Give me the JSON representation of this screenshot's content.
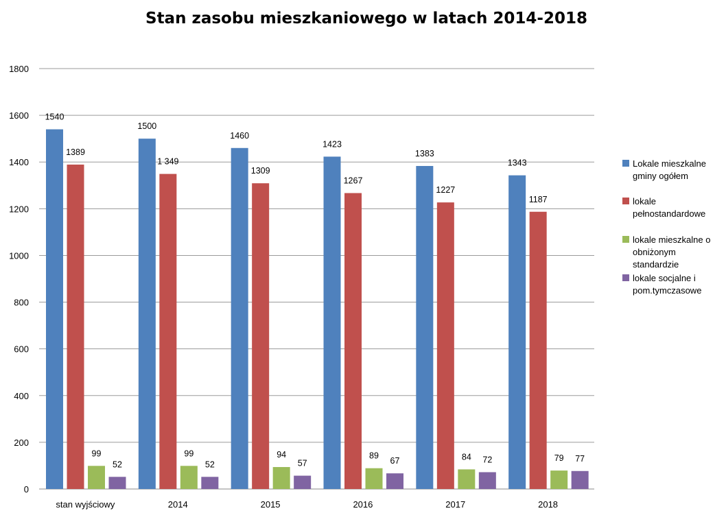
{
  "chart_data": {
    "type": "bar",
    "title": "Stan zasobu mieszkaniowego w latach 2014-2018",
    "xlabel": "",
    "ylabel": "",
    "categories": [
      "stan wyjściowy",
      "2014",
      "2015",
      "2016",
      "2017",
      "2018"
    ],
    "ylim": [
      0,
      1800
    ],
    "yticks": [
      0,
      200,
      400,
      600,
      800,
      1000,
      1200,
      1400,
      1600,
      1800
    ],
    "grid": true,
    "legend_position": "right",
    "series": [
      {
        "name": "Lokale mieszkalne gminy ogółem",
        "legend_lines": [
          "Lokale mieszkalne",
          "gminy ogółem"
        ],
        "color": "#4f81bd",
        "values": [
          1540,
          1500,
          1460,
          1423,
          1383,
          1343
        ],
        "labels": [
          "1540",
          "1500",
          "1460",
          "1423",
          "1383",
          "1343"
        ]
      },
      {
        "name": "lokale pełnostandardowe",
        "legend_lines": [
          "lokale",
          "pełnostandardowe"
        ],
        "color": "#c0504d",
        "values": [
          1389,
          1349,
          1309,
          1267,
          1227,
          1187
        ],
        "labels": [
          "1389",
          "1 349",
          "1309",
          "1267",
          "1227",
          "1187"
        ]
      },
      {
        "name": "lokale mieszkalne o obniżonym standardzie",
        "legend_lines": [
          "lokale mieszkalne o",
          "obniżonym",
          "standardzie"
        ],
        "color": "#9bbb59",
        "values": [
          99,
          99,
          94,
          89,
          84,
          79
        ],
        "labels": [
          "99",
          "99",
          "94",
          "89",
          "84",
          "79"
        ]
      },
      {
        "name": "lokale socjalne i pom.tymczasowe",
        "legend_lines": [
          "lokale socjalne i",
          "pom.tymczasowe"
        ],
        "color": "#8064a2",
        "values": [
          52,
          52,
          57,
          67,
          72,
          77
        ],
        "labels": [
          "52",
          "52",
          "57",
          "67",
          "72",
          "77"
        ]
      }
    ]
  }
}
